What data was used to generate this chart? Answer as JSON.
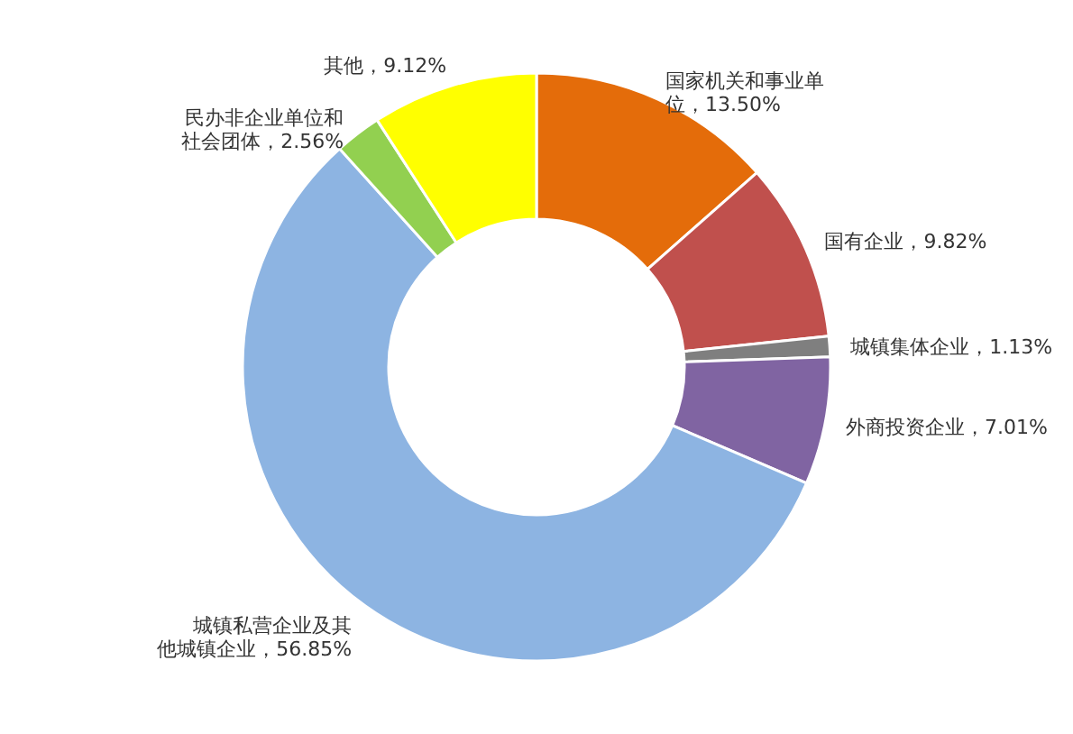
{
  "chart_data": {
    "type": "donut",
    "categories": [
      "国家机关和事业单位",
      "国有企业",
      "城镇集体企业",
      "外商投资企业",
      "城镇私营企业及其他城镇企业",
      "民办非企业单位和社会团体",
      "其他"
    ],
    "values": [
      13.5,
      9.82,
      1.13,
      7.01,
      56.85,
      2.56,
      9.12
    ],
    "value_labels": [
      "13.50%",
      "9.82%",
      "1.13%",
      "7.01%",
      "56.85%",
      "2.56%",
      "9.12%"
    ],
    "colors": [
      "#e46c0a",
      "#c0504d",
      "#7f7f7f",
      "#8064a2",
      "#8db4e2",
      "#92d050",
      "#ffff00"
    ]
  }
}
